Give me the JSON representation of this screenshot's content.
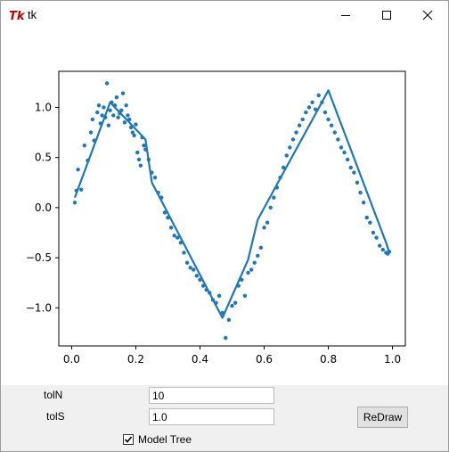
{
  "window": {
    "title": "tk",
    "app_icon": "tk-feather-icon",
    "minimize_icon": "minimize-icon",
    "maximize_icon": "maximize-icon",
    "close_icon": "close-icon"
  },
  "controls": {
    "toln_label": "tolN",
    "toln_value": "10",
    "tols_label": "tolS",
    "tols_value": "1.0",
    "redraw_label": "ReDraw",
    "model_tree_label": "Model Tree",
    "model_tree_checked": true
  },
  "chart_data": {
    "type": "line",
    "title": "",
    "xlabel": "",
    "ylabel": "",
    "xlim": [
      -0.04,
      1.04
    ],
    "ylim": [
      -1.38,
      1.36
    ],
    "xticks": [
      0.0,
      0.2,
      0.4,
      0.6,
      0.8,
      1.0
    ],
    "xtick_labels": [
      "0.0",
      "0.2",
      "0.4",
      "0.6",
      "0.8",
      "1.0"
    ],
    "yticks": [
      -1.0,
      -0.5,
      0.0,
      0.5,
      1.0
    ],
    "ytick_labels": [
      "−1.0",
      "−0.5",
      "0.0",
      "0.5",
      "1.0"
    ],
    "grid": false,
    "color": "#1f77b4",
    "series": [
      {
        "kind": "scatter",
        "x": [
          0.01,
          0.015,
          0.02,
          0.03,
          0.04,
          0.05,
          0.06,
          0.065,
          0.07,
          0.08,
          0.085,
          0.09,
          0.095,
          0.1,
          0.105,
          0.11,
          0.115,
          0.12,
          0.125,
          0.13,
          0.135,
          0.14,
          0.145,
          0.15,
          0.155,
          0.16,
          0.165,
          0.17,
          0.175,
          0.18,
          0.185,
          0.19,
          0.195,
          0.2,
          0.205,
          0.21,
          0.215,
          0.22,
          0.225,
          0.23,
          0.24,
          0.25,
          0.26,
          0.27,
          0.28,
          0.29,
          0.3,
          0.31,
          0.32,
          0.33,
          0.34,
          0.35,
          0.36,
          0.37,
          0.38,
          0.39,
          0.4,
          0.41,
          0.42,
          0.43,
          0.44,
          0.45,
          0.46,
          0.47,
          0.48,
          0.49,
          0.5,
          0.51,
          0.52,
          0.53,
          0.54,
          0.55,
          0.56,
          0.57,
          0.58,
          0.59,
          0.6,
          0.61,
          0.62,
          0.63,
          0.64,
          0.65,
          0.66,
          0.67,
          0.68,
          0.69,
          0.7,
          0.71,
          0.72,
          0.73,
          0.74,
          0.75,
          0.76,
          0.77,
          0.78,
          0.79,
          0.8,
          0.81,
          0.82,
          0.83,
          0.84,
          0.85,
          0.86,
          0.87,
          0.88,
          0.89,
          0.9,
          0.91,
          0.92,
          0.93,
          0.94,
          0.95,
          0.96,
          0.97,
          0.98,
          0.985,
          0.99
        ],
        "y": [
          0.05,
          0.17,
          0.38,
          0.18,
          0.62,
          0.47,
          0.75,
          0.88,
          0.67,
          0.95,
          1.02,
          0.84,
          0.92,
          1.0,
          0.9,
          1.24,
          0.82,
          0.97,
          1.05,
          0.92,
          1.02,
          1.1,
          0.9,
          0.94,
          0.97,
          1.14,
          0.85,
          1.02,
          0.92,
          0.88,
          0.8,
          0.75,
          0.72,
          0.83,
          0.55,
          0.48,
          0.42,
          0.7,
          0.62,
          0.58,
          0.48,
          0.35,
          0.3,
          0.15,
          0.1,
          -0.05,
          -0.1,
          -0.2,
          -0.28,
          -0.3,
          -0.35,
          -0.45,
          -0.55,
          -0.6,
          -0.62,
          -0.68,
          -0.72,
          -0.78,
          -0.82,
          -0.85,
          -0.92,
          -0.95,
          -0.88,
          -1.05,
          -1.3,
          -1.12,
          -0.98,
          -0.95,
          -0.78,
          -0.72,
          -0.88,
          -0.65,
          -0.62,
          -0.55,
          -0.48,
          -0.4,
          -0.2,
          -0.15,
          0.0,
          0.1,
          0.2,
          0.3,
          0.4,
          0.52,
          0.6,
          0.68,
          0.75,
          0.82,
          0.88,
          0.95,
          1.0,
          1.05,
          0.98,
          1.12,
          1.05,
          0.95,
          0.88,
          0.82,
          0.75,
          0.68,
          0.6,
          0.55,
          0.48,
          0.4,
          0.35,
          0.25,
          0.15,
          0.05,
          -0.1,
          -0.15,
          -0.25,
          -0.3,
          -0.38,
          -0.42,
          -0.45,
          -0.46,
          -0.44
        ]
      },
      {
        "kind": "line",
        "name": "",
        "x": [
          0.01,
          0.12,
          0.23,
          0.25,
          0.47,
          0.55,
          0.58,
          0.8,
          0.98,
          0.99
        ],
        "y": [
          0.1,
          1.05,
          0.68,
          0.25,
          -1.1,
          -0.52,
          -0.12,
          1.17,
          -0.35,
          -0.45
        ]
      }
    ]
  }
}
